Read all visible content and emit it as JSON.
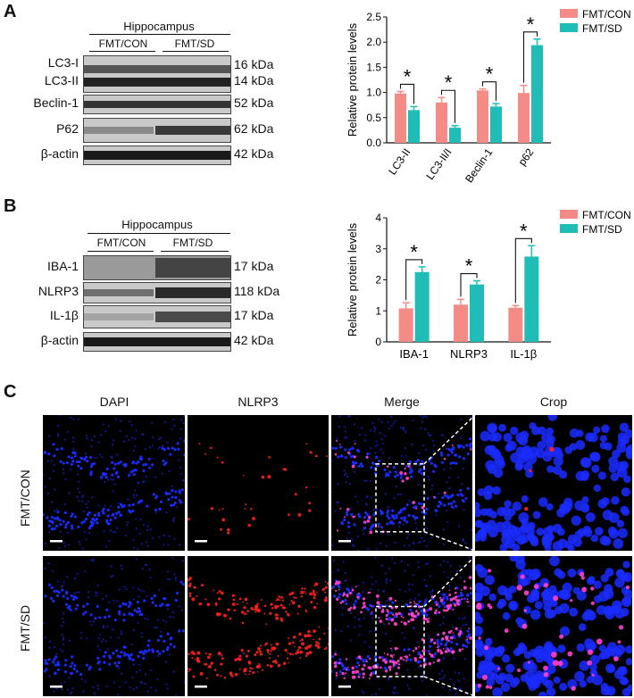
{
  "panels": {
    "a": "A",
    "b": "B",
    "c": "C"
  },
  "colors": {
    "con": "#f58b87",
    "sd": "#1fbdb6",
    "dapi": "#1a2cff",
    "nlrp3": "#ff2020"
  },
  "blot_a": {
    "title": "Hippocampus",
    "groups": [
      "FMT/CON",
      "FMT/SD"
    ],
    "rows": [
      {
        "label": "LC3-I",
        "label2": "LC3-II",
        "kda": "16 kDa",
        "kda2": "14 kDa"
      },
      {
        "label": "Beclin-1",
        "kda": "52 kDa"
      },
      {
        "label": "P62",
        "kda": "62 kDa"
      },
      {
        "label": "β-actin",
        "kda": "42 kDa"
      }
    ]
  },
  "blot_b": {
    "title": "Hippocampus",
    "groups": [
      "FMT/CON",
      "FMT/SD"
    ],
    "rows": [
      {
        "label": "IBA-1",
        "kda": "17 kDa"
      },
      {
        "label": "NLRP3",
        "kda": "118 kDa"
      },
      {
        "label": "IL-1β",
        "kda": "17 kDa"
      },
      {
        "label": "β-actin",
        "kda": "42 kDa"
      }
    ]
  },
  "chart_data": [
    {
      "type": "bar",
      "ylabel": "Relative protein levels",
      "ylim": [
        0,
        2.5
      ],
      "yticks": [
        "0.0",
        "0.5",
        "1.0",
        "1.5",
        "2.0",
        "2.5"
      ],
      "categories": [
        "LC3-II",
        "LC3-II/I",
        "Beclin-1",
        "p62"
      ],
      "series": [
        {
          "name": "FMT/CON",
          "values": [
            0.98,
            0.8,
            1.04,
            0.99
          ],
          "errors": [
            0.04,
            0.1,
            0.03,
            0.15
          ]
        },
        {
          "name": "FMT/SD",
          "values": [
            0.65,
            0.3,
            0.72,
            1.94
          ],
          "errors": [
            0.07,
            0.04,
            0.06,
            0.12
          ]
        }
      ],
      "significance": [
        "*",
        "*",
        "*",
        "*"
      ],
      "legend": "top-right"
    },
    {
      "type": "bar",
      "ylabel": "Relative protein levels",
      "ylim": [
        0,
        4
      ],
      "yticks": [
        "0",
        "1",
        "2",
        "3",
        "4"
      ],
      "categories": [
        "IBA-1",
        "NLRP3",
        "IL-1β"
      ],
      "series": [
        {
          "name": "FMT/CON",
          "values": [
            1.08,
            1.2,
            1.1
          ],
          "errors": [
            0.18,
            0.17,
            0.07
          ]
        },
        {
          "name": "FMT/SD",
          "values": [
            2.25,
            1.85,
            2.75
          ],
          "errors": [
            0.17,
            0.12,
            0.35
          ]
        }
      ],
      "significance": [
        "*",
        "*",
        "*"
      ],
      "legend": "top-right"
    }
  ],
  "microscopy": {
    "columns": [
      "DAPI",
      "NLRP3",
      "Merge",
      "Crop"
    ],
    "rows": [
      "FMT/CON",
      "FMT/SD"
    ]
  }
}
